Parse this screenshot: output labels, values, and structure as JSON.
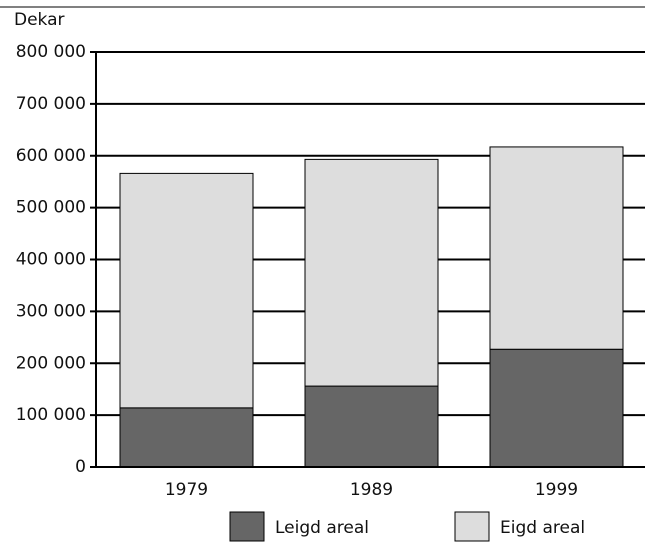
{
  "chart_data": {
    "type": "stacked_bar",
    "y_label": "Dekar",
    "categories": [
      "1979",
      "1989",
      "1999"
    ],
    "series": [
      {
        "name": "Leigd areal",
        "color": "#666666",
        "values": [
          114000,
          156000,
          227000
        ]
      },
      {
        "name": "Eigd areal",
        "color": "#dddddd",
        "values": [
          452000,
          437000,
          390000
        ]
      }
    ],
    "ylim": [
      0,
      800000
    ],
    "yticks": [
      0,
      {
        "value": 100000,
        "label": "100 000"
      },
      {
        "value": 200000,
        "label": "200 000"
      },
      {
        "value": 300000,
        "label": "300 000"
      },
      {
        "value": 400000,
        "label": "400 000"
      },
      {
        "value": 500000,
        "label": "500 000"
      },
      {
        "value": 600000,
        "label": "600 000"
      },
      {
        "value": 700000,
        "label": "700 000"
      },
      {
        "value": 800000,
        "label": "800 000"
      }
    ],
    "grid": true
  }
}
